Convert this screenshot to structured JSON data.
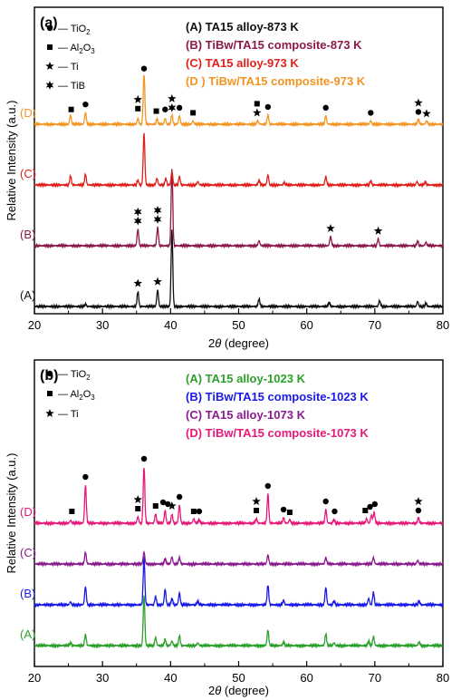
{
  "colors": {
    "black": "#111111",
    "maroon": "#8b1a4a",
    "red": "#e0201b",
    "orange": "#f39423",
    "green": "#2ba02b",
    "blue": "#1a1ae6",
    "purple": "#8b1c8f",
    "magenta": "#e6197a"
  },
  "chart_data": [
    {
      "type": "line",
      "panel_label": "(a)",
      "xlabel_main": "2",
      "xlabel_theta": "θ",
      "xlabel_unit": " (degree)",
      "ylabel": "Relative Intensity (a.u.)",
      "xlim": [
        20,
        80
      ],
      "x_ticks": [
        20,
        30,
        40,
        50,
        60,
        70,
        80
      ],
      "y_ticks_shown": false,
      "markers_legend": [
        {
          "symbol": "circle",
          "main": "— TiO",
          "sub": "2"
        },
        {
          "symbol": "square",
          "main": "— Al",
          "sub": "2",
          "tail": "O",
          "sub2": "3"
        },
        {
          "symbol": "star5",
          "main": "— Ti"
        },
        {
          "symbol": "star6",
          "main": "— TiB"
        }
      ],
      "legend": [
        {
          "label": "(A) TA15 alloy-873 K",
          "color": "#111111"
        },
        {
          "label": "(B) TiBw/TA15 composite-873 K",
          "color": "#8b1a4a"
        },
        {
          "label": "(C) TA15 alloy-973 K",
          "color": "#e0201b"
        },
        {
          "label": "(D ) TiBw/TA15 composite-973 K",
          "color": "#f39423"
        }
      ],
      "series": [
        {
          "name": "(A)",
          "color": "#111111",
          "offset": 0,
          "peaks": [
            [
              27.5,
              3
            ],
            [
              35.2,
              18
            ],
            [
              38.1,
              20
            ],
            [
              40.2,
              92
            ],
            [
              53.0,
              9
            ],
            [
              63.3,
              5
            ],
            [
              70.7,
              7
            ],
            [
              76.3,
              6
            ],
            [
              77.5,
              4
            ]
          ]
        },
        {
          "name": "(B)",
          "color": "#8b1a4a",
          "offset": 1,
          "peaks": [
            [
              35.2,
              20
            ],
            [
              38.1,
              22
            ],
            [
              40.2,
              92
            ],
            [
              53.0,
              6
            ],
            [
              63.5,
              11
            ],
            [
              70.5,
              8
            ],
            [
              76.3,
              5
            ],
            [
              77.5,
              4
            ]
          ]
        },
        {
          "name": "(C)",
          "color": "#e0201b",
          "offset": 2,
          "peaks": [
            [
              25.3,
              11
            ],
            [
              27.5,
              13
            ],
            [
              35.2,
              6
            ],
            [
              36.1,
              62
            ],
            [
              38.0,
              8
            ],
            [
              39.3,
              8
            ],
            [
              40.2,
              16
            ],
            [
              41.3,
              10
            ],
            [
              44.0,
              4
            ],
            [
              53.0,
              6
            ],
            [
              54.3,
              12
            ],
            [
              56.7,
              3
            ],
            [
              62.8,
              10
            ],
            [
              69.4,
              5
            ],
            [
              76.2,
              4
            ],
            [
              77.4,
              4
            ]
          ]
        },
        {
          "name": "(D)",
          "color": "#f39423",
          "offset": 3,
          "peaks": [
            [
              25.3,
              11
            ],
            [
              27.5,
              14
            ],
            [
              35.2,
              7
            ],
            [
              36.1,
              60
            ],
            [
              38.0,
              6
            ],
            [
              39.2,
              7
            ],
            [
              40.2,
              11
            ],
            [
              41.3,
              10
            ],
            [
              43.3,
              4
            ],
            [
              52.8,
              4
            ],
            [
              54.3,
              11
            ],
            [
              62.8,
              10
            ],
            [
              69.4,
              4
            ],
            [
              76.4,
              6
            ],
            [
              77.6,
              4
            ]
          ]
        }
      ],
      "annotations": [
        {
          "series": 3,
          "x": 25.4,
          "y": 9,
          "symbols": [
            "square"
          ]
        },
        {
          "series": 3,
          "x": 27.5,
          "y": 15,
          "symbols": [
            "circle"
          ]
        },
        {
          "series": 3,
          "x": 35.2,
          "y": 10,
          "symbols": [
            "star5",
            "square"
          ]
        },
        {
          "series": 3,
          "x": 36.1,
          "y": 58,
          "symbols": [
            "circle"
          ]
        },
        {
          "series": 3,
          "x": 37.9,
          "y": 7,
          "symbols": [
            "square"
          ]
        },
        {
          "series": 3,
          "x": 39.2,
          "y": 9,
          "symbols": [
            "circle"
          ]
        },
        {
          "series": 3,
          "x": 40.2,
          "y": 11,
          "symbols": [
            "star5",
            "star6"
          ]
        },
        {
          "series": 3,
          "x": 41.3,
          "y": 11,
          "symbols": [
            "circle"
          ]
        },
        {
          "series": 3,
          "x": 43.3,
          "y": 5,
          "symbols": [
            "square"
          ]
        },
        {
          "series": 3,
          "x": 52.7,
          "y": 5,
          "symbols": [
            "square",
            "star5"
          ]
        },
        {
          "series": 3,
          "x": 54.3,
          "y": 12,
          "symbols": [
            "circle"
          ]
        },
        {
          "series": 3,
          "x": 62.8,
          "y": 11,
          "symbols": [
            "circle"
          ]
        },
        {
          "series": 3,
          "x": 69.4,
          "y": 5,
          "symbols": [
            "circle"
          ]
        },
        {
          "series": 3,
          "x": 76.4,
          "y": 6,
          "symbols": [
            "star5",
            "circle"
          ]
        },
        {
          "series": 3,
          "x": 77.6,
          "y": 4,
          "symbols": [
            "star5"
          ]
        },
        {
          "series": 1,
          "x": 35.2,
          "y": 21,
          "symbols": [
            "star6",
            "star6"
          ]
        },
        {
          "series": 1,
          "x": 38.1,
          "y": 23,
          "symbols": [
            "star6",
            "star6"
          ]
        },
        {
          "series": 1,
          "x": 63.5,
          "y": 12,
          "symbols": [
            "star5"
          ]
        },
        {
          "series": 1,
          "x": 70.5,
          "y": 9,
          "symbols": [
            "star5"
          ]
        },
        {
          "series": 0,
          "x": 35.2,
          "y": 19,
          "symbols": [
            "star5"
          ]
        },
        {
          "series": 0,
          "x": 38.1,
          "y": 21,
          "symbols": [
            "star5"
          ]
        }
      ]
    },
    {
      "type": "line",
      "panel_label": "(b)",
      "xlabel_main": "2",
      "xlabel_theta": "θ",
      "xlabel_unit": " (degree)",
      "ylabel": "Relative Intensity (a.u.)",
      "xlim": [
        20,
        80
      ],
      "x_ticks": [
        20,
        30,
        40,
        50,
        60,
        70,
        80
      ],
      "y_ticks_shown": false,
      "markers_legend": [
        {
          "symbol": "circle",
          "main": "— TiO",
          "sub": "2"
        },
        {
          "symbol": "square",
          "main": "— Al",
          "sub": "2",
          "tail": "O",
          "sub2": "3"
        },
        {
          "symbol": "star5",
          "main": "— Ti"
        }
      ],
      "legend": [
        {
          "label": "(A) TA15 alloy-1023 K",
          "color": "#2ba02b"
        },
        {
          "label": "(B) TiBw/TA15 composite-1023 K",
          "color": "#1a1ae6"
        },
        {
          "label": "(C) TA15 alloy-1073 K",
          "color": "#8b1c8f"
        },
        {
          "label": "(D) TiBw/TA15 composite-1073 K",
          "color": "#e6197a"
        }
      ],
      "series": [
        {
          "name": "(A)",
          "color": "#2ba02b",
          "offset": 0,
          "peaks": [
            [
              25.3,
              3
            ],
            [
              27.5,
              12
            ],
            [
              36.1,
              55
            ],
            [
              37.8,
              9
            ],
            [
              39.2,
              7
            ],
            [
              40.2,
              5
            ],
            [
              41.3,
              11
            ],
            [
              44.0,
              3
            ],
            [
              54.3,
              17
            ],
            [
              56.6,
              4
            ],
            [
              62.8,
              13
            ],
            [
              64.0,
              3
            ],
            [
              69.1,
              5
            ],
            [
              69.8,
              10
            ],
            [
              76.5,
              4
            ]
          ]
        },
        {
          "name": "(B)",
          "color": "#1a1ae6",
          "offset": 1,
          "peaks": [
            [
              25.3,
              3
            ],
            [
              27.5,
              20
            ],
            [
              36.1,
              52
            ],
            [
              37.8,
              9
            ],
            [
              39.2,
              17
            ],
            [
              40.2,
              7
            ],
            [
              41.3,
              13
            ],
            [
              44.0,
              4
            ],
            [
              54.3,
              22
            ],
            [
              56.6,
              5
            ],
            [
              62.8,
              19
            ],
            [
              64.0,
              4
            ],
            [
              69.1,
              7
            ],
            [
              69.8,
              14
            ],
            [
              76.5,
              4
            ]
          ]
        },
        {
          "name": "(C)",
          "color": "#8b1c8f",
          "offset": 2,
          "peaks": [
            [
              27.5,
              13
            ],
            [
              36.1,
              13
            ],
            [
              39.2,
              6
            ],
            [
              40.2,
              8
            ],
            [
              41.3,
              7
            ],
            [
              54.3,
              10
            ],
            [
              62.8,
              7
            ],
            [
              69.8,
              7
            ],
            [
              76.3,
              4
            ]
          ]
        },
        {
          "name": "(D)",
          "color": "#e6197a",
          "offset": 3,
          "peaks": [
            [
              25.3,
              3
            ],
            [
              27.5,
              42
            ],
            [
              35.2,
              7
            ],
            [
              36.1,
              62
            ],
            [
              37.8,
              10
            ],
            [
              39.2,
              14
            ],
            [
              40.2,
              10
            ],
            [
              41.3,
              20
            ],
            [
              43.4,
              5
            ],
            [
              44.2,
              4
            ],
            [
              52.6,
              5
            ],
            [
              54.3,
              32
            ],
            [
              56.6,
              6
            ],
            [
              57.5,
              4
            ],
            [
              62.8,
              15
            ],
            [
              64.0,
              4
            ],
            [
              68.8,
              5
            ],
            [
              69.5,
              9
            ],
            [
              69.9,
              12
            ],
            [
              76.4,
              6
            ]
          ]
        }
      ],
      "annotations": [
        {
          "series": 3,
          "x": 25.5,
          "y": 5,
          "symbols": [
            "square"
          ]
        },
        {
          "series": 3,
          "x": 27.5,
          "y": 43,
          "symbols": [
            "circle"
          ]
        },
        {
          "series": 3,
          "x": 35.2,
          "y": 8,
          "symbols": [
            "star5",
            "square"
          ]
        },
        {
          "series": 3,
          "x": 36.1,
          "y": 63,
          "symbols": [
            "circle"
          ]
        },
        {
          "series": 3,
          "x": 37.8,
          "y": 11,
          "symbols": [
            "square"
          ]
        },
        {
          "series": 3,
          "x": 38.9,
          "y": 15,
          "symbols": [
            "circle"
          ]
        },
        {
          "series": 3,
          "x": 39.6,
          "y": 13,
          "symbols": [
            "circle"
          ]
        },
        {
          "series": 3,
          "x": 40.2,
          "y": 11,
          "symbols": [
            "star5"
          ]
        },
        {
          "series": 3,
          "x": 41.3,
          "y": 21,
          "symbols": [
            "circle"
          ]
        },
        {
          "series": 3,
          "x": 43.4,
          "y": 5,
          "symbols": [
            "square"
          ]
        },
        {
          "series": 3,
          "x": 44.2,
          "y": 5,
          "symbols": [
            "circle"
          ]
        },
        {
          "series": 3,
          "x": 52.6,
          "y": 6,
          "symbols": [
            "star5",
            "square"
          ]
        },
        {
          "series": 3,
          "x": 54.3,
          "y": 33,
          "symbols": [
            "circle"
          ]
        },
        {
          "series": 3,
          "x": 56.6,
          "y": 7,
          "symbols": [
            "circle"
          ]
        },
        {
          "series": 3,
          "x": 57.5,
          "y": 4,
          "symbols": [
            "square"
          ]
        },
        {
          "series": 3,
          "x": 62.8,
          "y": 16,
          "symbols": [
            "circle"
          ]
        },
        {
          "series": 3,
          "x": 64.1,
          "y": 5,
          "symbols": [
            "circle"
          ]
        },
        {
          "series": 3,
          "x": 68.6,
          "y": 6,
          "symbols": [
            "square"
          ]
        },
        {
          "series": 3,
          "x": 69.3,
          "y": 10,
          "symbols": [
            "circle"
          ]
        },
        {
          "series": 3,
          "x": 70.0,
          "y": 13,
          "symbols": [
            "circle"
          ]
        },
        {
          "series": 3,
          "x": 76.4,
          "y": 6,
          "symbols": [
            "star5",
            "circle"
          ]
        }
      ]
    }
  ]
}
